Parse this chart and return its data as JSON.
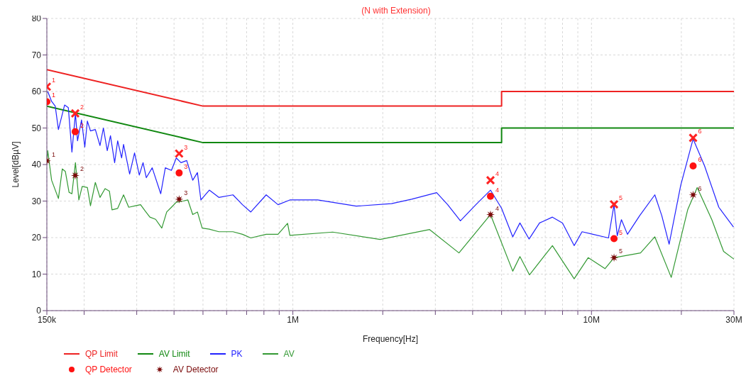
{
  "chart_data": {
    "type": "line",
    "title": "(N with Extension)",
    "xlabel": "Frequency[Hz]",
    "ylabel": "Level[dBµV]",
    "log": "x",
    "grid": true,
    "legend": "bottom",
    "xlim": [
      150000,
      30000000
    ],
    "xticks": [
      {
        "value": 150000,
        "label": "150k"
      },
      {
        "value": 200000,
        "label": null
      },
      {
        "value": 300000,
        "label": null
      },
      {
        "value": 400000,
        "label": null
      },
      {
        "value": 500000,
        "label": null
      },
      {
        "value": 600000,
        "label": null
      },
      {
        "value": 700000,
        "label": null
      },
      {
        "value": 800000,
        "label": null
      },
      {
        "value": 900000,
        "label": null
      },
      {
        "value": 1000000,
        "label": "1M"
      },
      {
        "value": 2000000,
        "label": null
      },
      {
        "value": 3000000,
        "label": null
      },
      {
        "value": 4000000,
        "label": null
      },
      {
        "value": 5000000,
        "label": null
      },
      {
        "value": 6000000,
        "label": null
      },
      {
        "value": 7000000,
        "label": null
      },
      {
        "value": 8000000,
        "label": null
      },
      {
        "value": 9000000,
        "label": null
      },
      {
        "value": 10000000,
        "label": "10M"
      },
      {
        "value": 20000000,
        "label": null
      },
      {
        "value": 30000000,
        "label": "30M"
      }
    ],
    "ylim": [
      0,
      80
    ],
    "yticks": [
      0,
      10,
      20,
      30,
      40,
      50,
      60,
      70,
      80
    ],
    "series": [
      {
        "name": "QP Limit",
        "color": "#ee2222",
        "marker": "none",
        "x": [
          150000,
          500000,
          5000000,
          5000000,
          30000000
        ],
        "values": [
          66,
          56,
          56,
          60,
          60
        ]
      },
      {
        "name": "AV Limit",
        "color": "#118811",
        "marker": "none",
        "x": [
          150000,
          500000,
          5000000,
          5000000,
          30000000
        ],
        "values": [
          56,
          46,
          46,
          50,
          50
        ]
      },
      {
        "name": "PK",
        "color": "#2222ff",
        "marker": "none",
        "x": [
          151000,
          155600,
          160000,
          164000,
          172000,
          177000,
          182000,
          187000,
          190000,
          196000,
          201000,
          205000,
          210000,
          218000,
          226000,
          232000,
          239000,
          245000,
          253000,
          259000,
          267000,
          271000,
          284000,
          295000,
          306000,
          315000,
          323000,
          338000,
          361000,
          374000,
          392000,
          407000,
          422000,
          441000,
          462000,
          479000,
          492000,
          525000,
          565000,
          630000,
          678000,
          723000,
          814000,
          892000,
          977000,
          1210000,
          1630000,
          2140000,
          2500000,
          3030000,
          3300000,
          3640000,
          4100000,
          4590000,
          5000000,
          5450000,
          5760000,
          6180000,
          6700000,
          7400000,
          8000000,
          8750000,
          9300000,
          10000000,
          11400000,
          11900000,
          12200000,
          12600000,
          13200000,
          14500000,
          16300000,
          17200000,
          18200000,
          19900000,
          21900000,
          23900000,
          26700000,
          29900000
        ],
        "values": [
          60,
          57.3,
          56,
          49.6,
          56.3,
          55.6,
          43.4,
          54,
          46.5,
          52.2,
          44.8,
          51.9,
          49.2,
          49.6,
          45.2,
          50,
          43.8,
          47.9,
          40.5,
          46.5,
          41.8,
          45.5,
          37.4,
          43.2,
          37.1,
          40.5,
          36.4,
          39.1,
          32,
          39.1,
          38.4,
          41.8,
          40.5,
          41.1,
          35.7,
          37.8,
          30.3,
          33,
          31,
          31.7,
          29,
          27,
          31.7,
          29,
          30.3,
          30.3,
          28.6,
          29.3,
          30.5,
          32.3,
          29,
          24.6,
          29,
          33,
          28,
          20.2,
          24,
          19.6,
          24,
          25.6,
          24,
          17.8,
          21.6,
          21,
          19.9,
          29,
          20.5,
          24.9,
          20.9,
          26,
          31.7,
          26,
          18.2,
          34.3,
          47,
          39.7,
          28.3,
          22.9
        ]
      },
      {
        "name": "AV",
        "color": "#339933",
        "marker": "none",
        "x": [
          150000,
          151000,
          155600,
          164000,
          169000,
          173000,
          178000,
          182000,
          187000,
          192000,
          197000,
          205000,
          210000,
          218000,
          226000,
          235000,
          243000,
          248000,
          259000,
          271000,
          282000,
          297000,
          309000,
          320000,
          332000,
          347000,
          364000,
          378000,
          392000,
          407000,
          429000,
          445000,
          462000,
          479000,
          497000,
          525000,
          565000,
          630000,
          678000,
          723000,
          814000,
          892000,
          960000,
          977000,
          1360000,
          1960000,
          2870000,
          3600000,
          4590000,
          5450000,
          5760000,
          6200000,
          7400000,
          8750000,
          9750000,
          11100000,
          11900000,
          14600000,
          16300000,
          18500000,
          21000000,
          22600000,
          25300000,
          27700000,
          30000000
        ],
        "values": [
          41,
          43.8,
          35.7,
          30.7,
          38.8,
          38.1,
          32.4,
          32,
          40.5,
          30.3,
          34,
          33.7,
          28.7,
          35.1,
          31,
          33.4,
          32.7,
          27.6,
          28,
          31.7,
          28.3,
          28.7,
          29,
          27.3,
          25.6,
          25,
          22.6,
          27,
          28.3,
          29.7,
          30,
          30.3,
          26.3,
          27,
          22.6,
          22.3,
          21.6,
          21.6,
          20.9,
          19.9,
          20.9,
          20.9,
          23.9,
          20.6,
          21.5,
          19.5,
          22.2,
          15.8,
          26.3,
          10.8,
          14.8,
          9.8,
          17.8,
          8.7,
          14.5,
          11.5,
          14.5,
          15.8,
          20.2,
          9.1,
          27.6,
          33.7,
          24.9,
          16.2,
          14.1
        ]
      },
      {
        "type": "scatter",
        "color": "#ff2222",
        "marker": "cross",
        "x": [
          150000,
          186700,
          416000,
          4590000,
          11900000,
          21900000
        ],
        "values": [
          61.3,
          54,
          43,
          35.7,
          29.1,
          47.3
        ]
      },
      {
        "name": "QP Detector",
        "type": "scatter",
        "color": "#ff1111",
        "marker": "circle",
        "x": [
          150000,
          186700,
          416000,
          4590000,
          11900000,
          21900000
        ],
        "values": [
          57.2,
          49,
          37.7,
          31.3,
          19.7,
          39.6
        ]
      },
      {
        "name": "AV Detector",
        "type": "scatter",
        "color": "#7a0a0a",
        "marker": "star",
        "x": [
          150000,
          186700,
          416000,
          4590000,
          11900000,
          21900000
        ],
        "values": [
          41,
          37,
          30.5,
          26.3,
          14.5,
          31.7
        ]
      }
    ],
    "annotations": [
      {
        "text": "1",
        "x": 150000,
        "y": 61.3
      },
      {
        "text": "2",
        "x": 186700,
        "y": 54
      },
      {
        "text": "3",
        "x": 416000,
        "y": 43
      },
      {
        "text": "4",
        "x": 4590000,
        "y": 35.7
      },
      {
        "text": "5",
        "x": 11900000,
        "y": 29.1
      },
      {
        "text": "6",
        "x": 21900000,
        "y": 47.3
      },
      {
        "text": "1",
        "x": 150000,
        "y": 57.2
      },
      {
        "text": "2",
        "x": 186700,
        "y": 49
      },
      {
        "text": "3",
        "x": 416000,
        "y": 37.7
      },
      {
        "text": "4",
        "x": 4590000,
        "y": 31.3
      },
      {
        "text": "5",
        "x": 11900000,
        "y": 19.7
      },
      {
        "text": "6",
        "x": 21900000,
        "y": 39.6
      },
      {
        "text": "1",
        "x": 150000,
        "y": 41
      },
      {
        "text": "2",
        "x": 186700,
        "y": 37
      },
      {
        "text": "3",
        "x": 416000,
        "y": 30.5
      },
      {
        "text": "4",
        "x": 4590000,
        "y": 26.3
      },
      {
        "text": "5",
        "x": 11900000,
        "y": 14.5
      },
      {
        "text": "6",
        "x": 21900000,
        "y": 31.7
      }
    ]
  }
}
